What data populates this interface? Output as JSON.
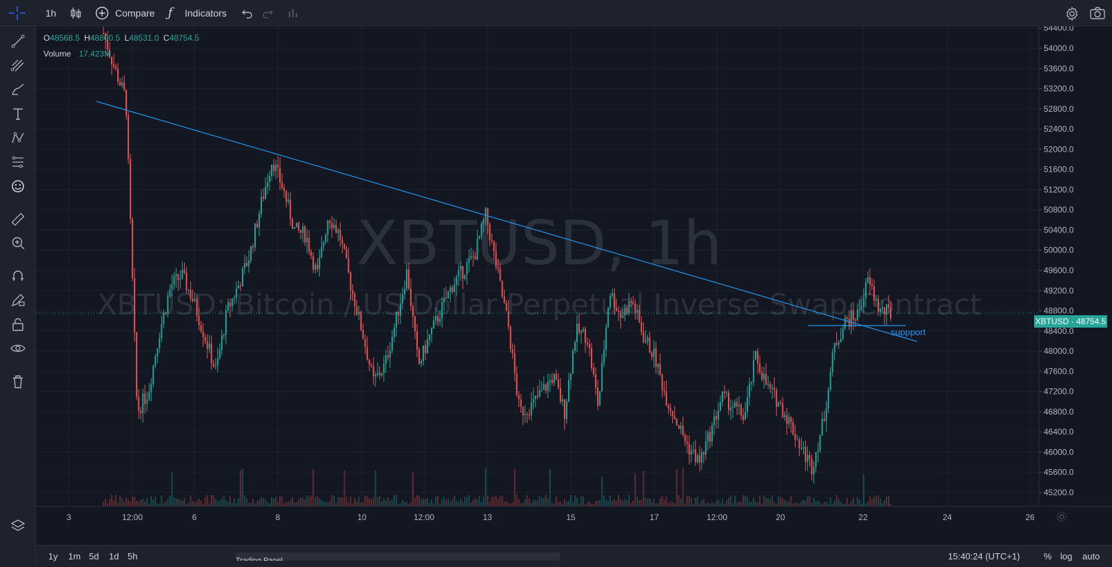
{
  "toolbar": {
    "interval": "1h",
    "compare_label": "Compare",
    "indicators_label": "Indicators"
  },
  "legend": {
    "o_label": "O",
    "o_value": "48568.5",
    "h_label": "H",
    "h_value": "48800.5",
    "l_label": "L",
    "l_value": "48531.0",
    "c_label": "C",
    "c_value": "48754.5",
    "volume_label": "Volume",
    "volume_value": "17.423M"
  },
  "watermark": {
    "symbol_interval": "XBTUSD, 1h",
    "description": "XBTUSD: Bitcoin / US Dollar Perpetual Inverse Swap Contract"
  },
  "price_axis": {
    "ticks": [
      "54400.0",
      "54000.0",
      "53600.0",
      "53200.0",
      "52800.0",
      "52400.0",
      "52000.0",
      "51600.0",
      "51200.0",
      "50800.0",
      "50400.0",
      "50000.0",
      "49600.0",
      "49200.0",
      "48800.0",
      "48400.0",
      "48000.0",
      "47600.0",
      "47200.0",
      "46800.0",
      "46400.0",
      "46000.0",
      "45600.0",
      "45200.0"
    ],
    "last_price_symbol": "XBTUSD",
    "last_price": "48754.5"
  },
  "time_axis": {
    "ticks": [
      "3",
      "12:00",
      "6",
      "8",
      "10",
      "12:00",
      "13",
      "15",
      "17",
      "12:00",
      "20",
      "22",
      "24",
      "26"
    ]
  },
  "drawings": {
    "support_label": "suppport"
  },
  "bottom": {
    "ranges": [
      "1y",
      "1m",
      "5d",
      "1d",
      "5h"
    ],
    "clock": "15:40:24 (UTC+1)",
    "percent": "%",
    "log": "log",
    "auto": "auto",
    "panel_tab": "Trading Panel"
  },
  "colors": {
    "up": "#26a69a",
    "down": "#ef5350",
    "trendline": "#2196f3",
    "background": "#131722",
    "panel": "#1e222d"
  },
  "chart_data": {
    "type": "candlestick",
    "series": [
      {
        "name": "XBTUSD",
        "values": [
          54300,
          53600,
          53000,
          46800,
          47200,
          48400,
          49300,
          49500,
          49000,
          48300,
          47600,
          48800,
          49300,
          49900,
          50900,
          51800,
          51200,
          50400,
          50300,
          49500,
          50700,
          50300,
          49300,
          48400,
          47400,
          47700,
          48600,
          49600,
          47700,
          48300,
          48800,
          49300,
          49600,
          49900,
          50700,
          49600,
          48500,
          46800,
          46900,
          47200,
          47500,
          46800,
          48400,
          48300,
          46900,
          49200,
          48700,
          49000,
          48300,
          47900,
          47100,
          46600,
          46100,
          45800,
          46400,
          47100,
          46900,
          46700,
          47900,
          47300,
          47000,
          46600,
          46100,
          45700,
          46600,
          48100,
          48600,
          48700,
          49400,
          48800,
          48754.5
        ]
      }
    ],
    "x_ticks": [
      "3",
      "12:00",
      "6",
      "8",
      "10",
      "12:00",
      "13",
      "15",
      "17",
      "12:00",
      "20",
      "22",
      "24",
      "26"
    ],
    "ylim": [
      45000,
      54500
    ],
    "log_scale": true,
    "grid": true,
    "last_price": 48754.5
  }
}
